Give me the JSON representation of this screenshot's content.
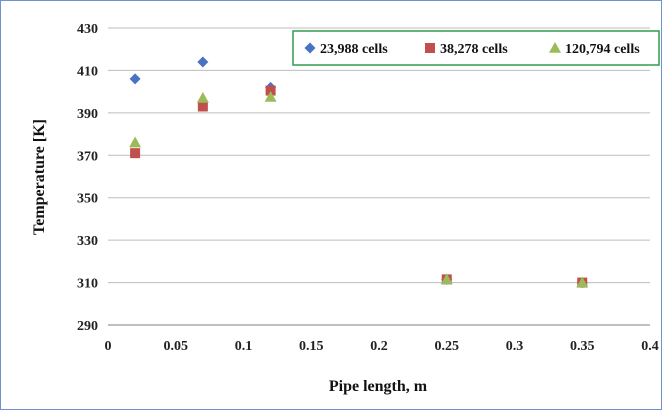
{
  "chart_data": {
    "type": "scatter",
    "title": "",
    "xlabel": "Pipe length, m",
    "ylabel": "Temperature [K]",
    "xlim": [
      0,
      0.4
    ],
    "ylim": [
      290,
      430
    ],
    "x_ticks": [
      "0",
      "0.05",
      "0.1",
      "0.15",
      "0.2",
      "0.25",
      "0.3",
      "0.35",
      "0.4"
    ],
    "y_ticks": [
      "290",
      "310",
      "330",
      "350",
      "370",
      "390",
      "410",
      "430"
    ],
    "grid": "horizontal",
    "legend_position": "top-right",
    "series": [
      {
        "name": "23,988 cells",
        "marker": "diamond",
        "color": "#4a72c4",
        "points": [
          {
            "x": 0.02,
            "y": 406
          },
          {
            "x": 0.07,
            "y": 414
          },
          {
            "x": 0.12,
            "y": 402
          },
          {
            "x": 0.25,
            "y": 311.5
          },
          {
            "x": 0.35,
            "y": 310
          }
        ]
      },
      {
        "name": "38,278 cells",
        "marker": "square",
        "color": "#c0504d",
        "points": [
          {
            "x": 0.02,
            "y": 371
          },
          {
            "x": 0.07,
            "y": 393
          },
          {
            "x": 0.12,
            "y": 400.5
          },
          {
            "x": 0.25,
            "y": 311.5
          },
          {
            "x": 0.35,
            "y": 310
          }
        ]
      },
      {
        "name": "120,794 cells",
        "marker": "triangle",
        "color": "#9bbb59",
        "points": [
          {
            "x": 0.02,
            "y": 376
          },
          {
            "x": 0.07,
            "y": 397
          },
          {
            "x": 0.12,
            "y": 397.5
          },
          {
            "x": 0.25,
            "y": 311.5
          },
          {
            "x": 0.35,
            "y": 310
          }
        ]
      }
    ]
  }
}
